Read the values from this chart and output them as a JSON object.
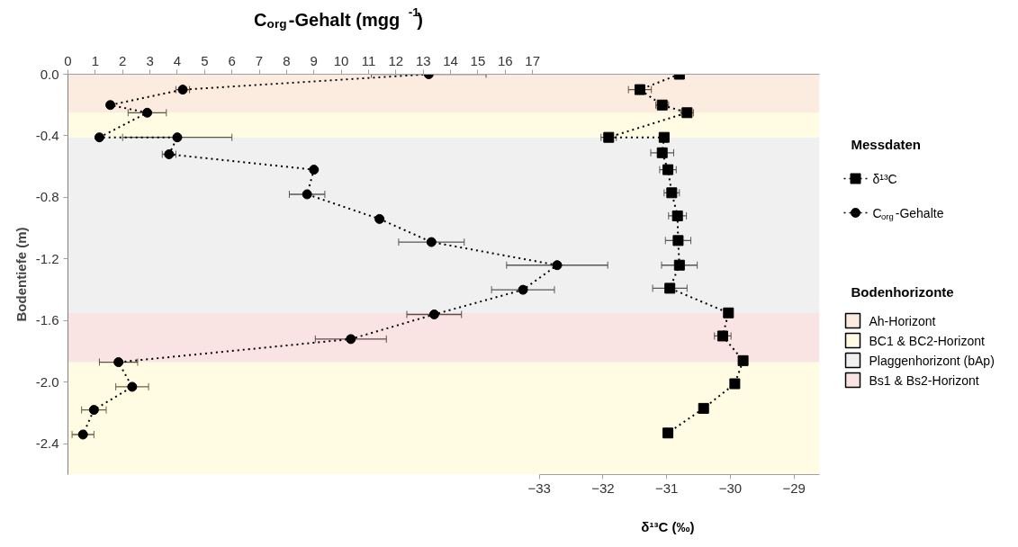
{
  "chart_data": {
    "type": "line",
    "xlabel": "δ¹³C (‰)",
    "x2label": "C$_{org}$-Gehalt (mgg$^{-1}$)",
    "ylabel": "Bodentiefe (m)",
    "legend_title": "Messdaten",
    "annotations": [
      "Bodenhorizonte"
    ],
    "xlim": [
      -40.4,
      -28.6
    ],
    "xticks": [
      -33,
      -32,
      -31,
      -30,
      -29
    ],
    "x2lim": [
      0,
      27.5
    ],
    "x2ticks": [
      0,
      1,
      2,
      3,
      4,
      5,
      6,
      7,
      8,
      9,
      10,
      11,
      12,
      13,
      14,
      15,
      16,
      17
    ],
    "ylim": [
      -2.6,
      0
    ],
    "yticks": [
      {
        "value": 0,
        "label": "0.0"
      },
      {
        "value": -0.4,
        "label": "-0.4"
      },
      {
        "value": -0.8,
        "label": "-0.8"
      },
      {
        "value": -1.2,
        "label": "-1.2"
      },
      {
        "value": -1.6,
        "label": "-1.6"
      },
      {
        "value": -2.0,
        "label": "-2.0"
      },
      {
        "value": -2.4,
        "label": "-2.4"
      }
    ],
    "grid": false,
    "legend": "right",
    "line_style": "dotted",
    "series": [
      {
        "name": "δ¹³C",
        "marker": "square",
        "color": "#000000",
        "values": [
          0.0,
          -0.1,
          -0.2,
          -0.25,
          -0.41,
          -0.41,
          -0.51,
          -0.62,
          -0.77,
          -0.92,
          -1.08,
          -1.24,
          -1.39,
          -1.55,
          -1.7,
          -1.86,
          -2.01,
          -2.17,
          -2.33
        ],
        "x": [
          -30.8,
          -31.42,
          -31.07,
          -30.68,
          -31.91,
          -31.04,
          -31.07,
          -30.98,
          -30.92,
          -30.83,
          -30.82,
          -30.8,
          -30.95,
          -30.03,
          -30.12,
          -29.8,
          -29.93,
          -30.42,
          -30.98
        ],
        "xerrors": [
          null,
          0.18,
          0.1,
          0.1,
          0.12,
          null,
          0.18,
          0.13,
          0.12,
          0.14,
          0.2,
          0.28,
          0.27,
          null,
          0.13,
          null,
          null,
          null,
          null
        ]
      },
      {
        "name": "C$_{org}$-Gehalte",
        "marker": "circle",
        "axis": "x2",
        "color": "#000000",
        "values": [
          0.0,
          -0.1,
          -0.2,
          -0.25,
          -0.41,
          -0.41,
          -0.52,
          -0.62,
          -0.78,
          -0.94,
          -1.09,
          -1.24,
          -1.4,
          -1.56,
          -1.72,
          -1.87,
          -2.03,
          -2.18,
          -2.34
        ],
        "x": [
          13.2,
          4.2,
          1.55,
          2.9,
          1.15,
          4.0,
          3.7,
          9.0,
          8.75,
          11.4,
          13.3,
          17.9,
          16.65,
          13.4,
          10.35,
          1.85,
          2.35,
          0.95,
          0.55
        ],
        "xerrors": [
          2.1,
          0.25,
          null,
          0.7,
          null,
          2.0,
          0.25,
          null,
          0.65,
          null,
          1.2,
          1.85,
          1.15,
          1.0,
          1.3,
          0.7,
          0.6,
          0.45,
          0.4
        ]
      }
    ],
    "bands": [
      {
        "axis": "y",
        "from": 0,
        "to": -0.25,
        "label": "Ah-Horizont",
        "color": "#f8cfae"
      },
      {
        "axis": "y",
        "from": -0.25,
        "to": -0.41,
        "label": "BC1 & BC2-Horizont",
        "color": "#fff7b8"
      },
      {
        "axis": "y",
        "from": -0.41,
        "to": -1.55,
        "label": "Plaggenhorizont (bAp)",
        "color": "#d9d9d9"
      },
      {
        "axis": "y",
        "from": -1.55,
        "to": -1.87,
        "label": "Bs1 & Bs2-Horizont",
        "color": "#f0b8b8"
      },
      {
        "axis": "y",
        "from": -1.87,
        "to": -2.6,
        "color": "#fff7b8"
      }
    ]
  }
}
